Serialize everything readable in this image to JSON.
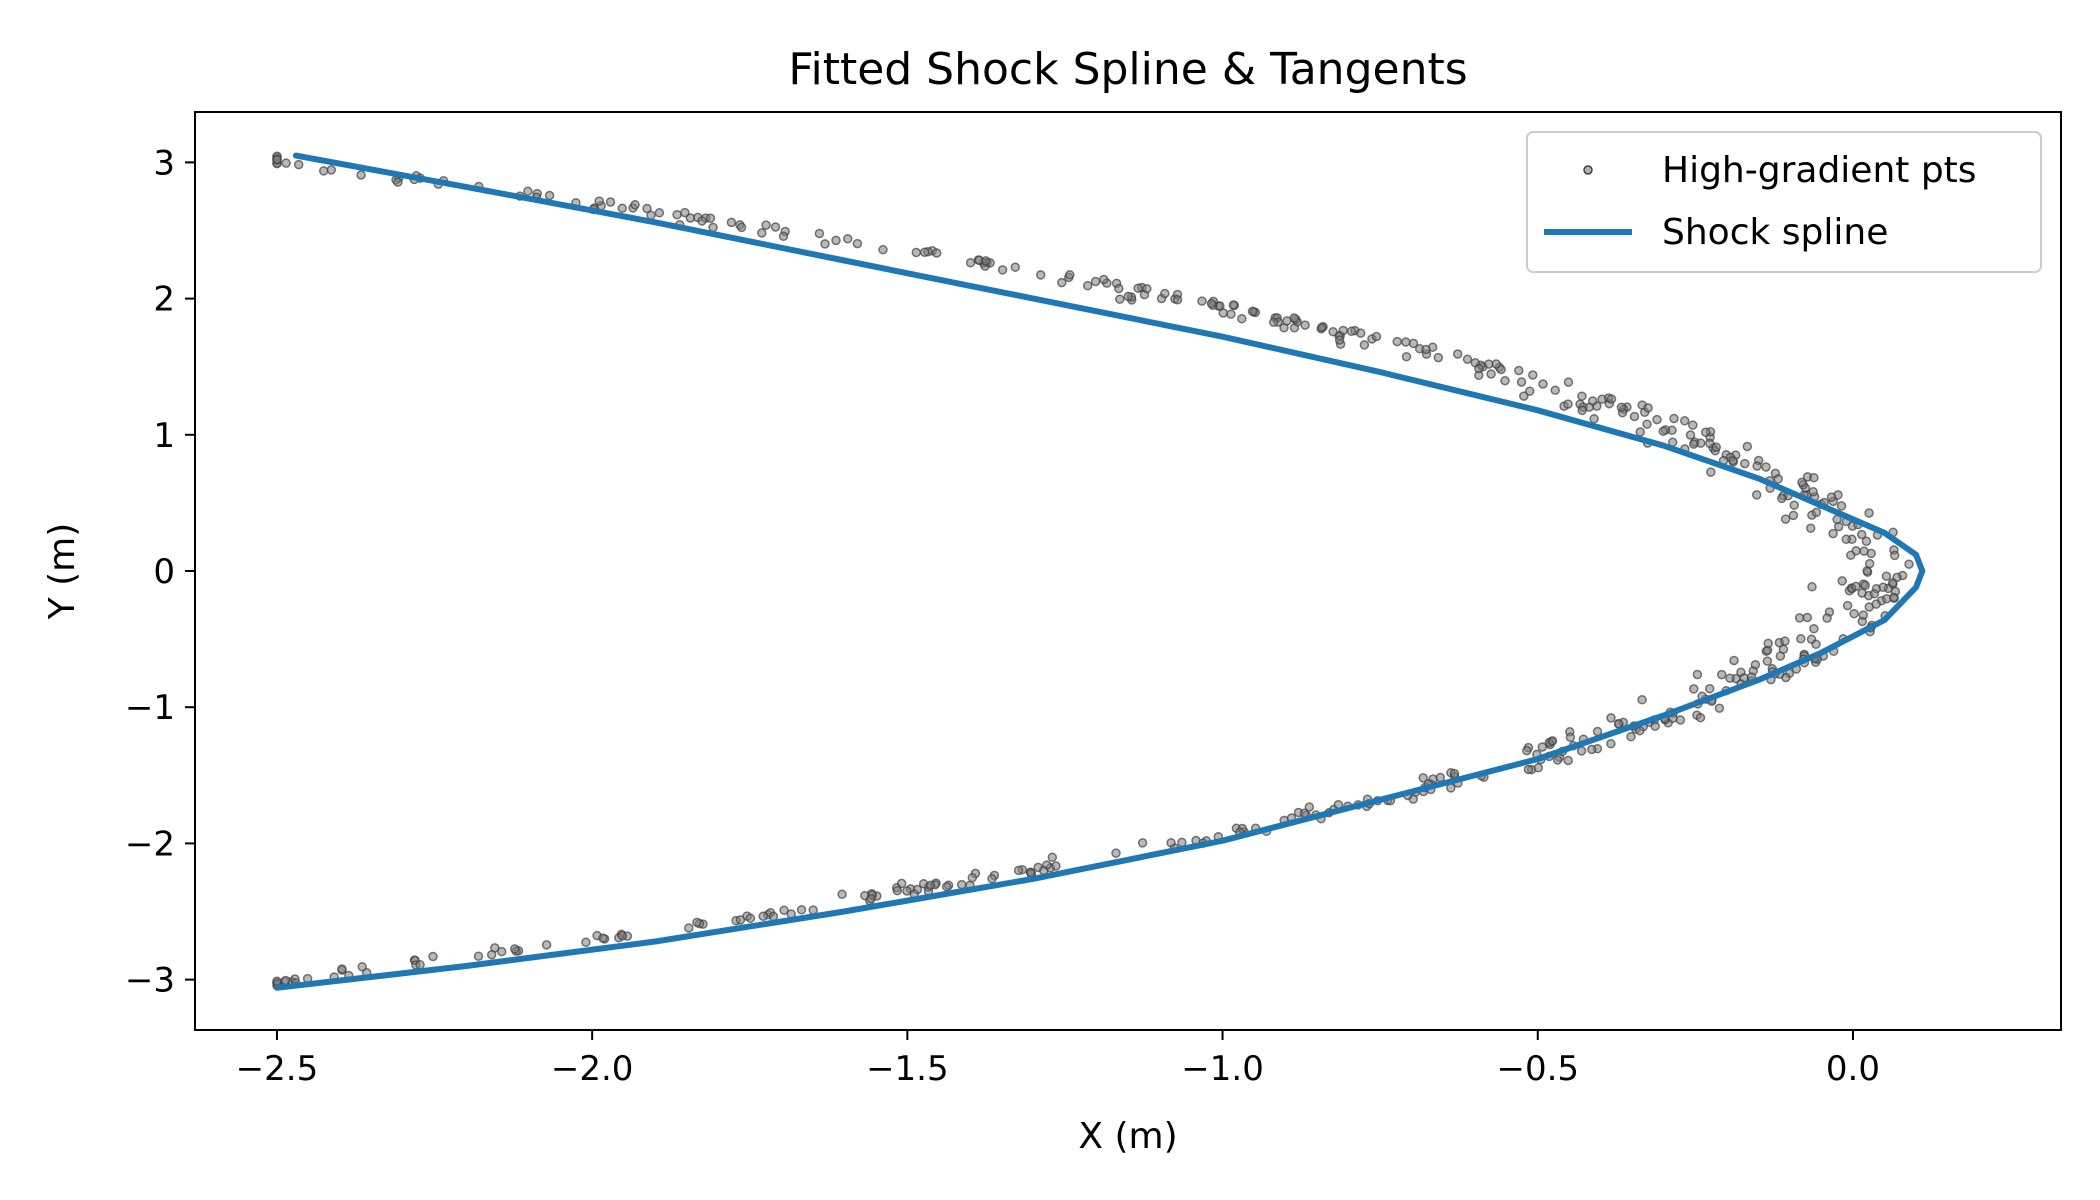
{
  "chart_data": {
    "type": "scatter",
    "title": "Fitted Shock Spline & Tangents",
    "xlabel": "X (m)",
    "ylabel": "Y (m)",
    "xlim": [
      -2.63,
      0.33
    ],
    "ylim": [
      -3.37,
      3.37
    ],
    "xticks": [
      -2.5,
      -2.0,
      -1.5,
      -1.0,
      -0.5,
      0.0
    ],
    "xtick_labels": [
      "−2.5",
      "−2.0",
      "−1.5",
      "−1.0",
      "−0.5",
      "0.0"
    ],
    "yticks": [
      3,
      2,
      1,
      0,
      -1,
      -2,
      -3
    ],
    "ytick_labels": [
      "3",
      "2",
      "1",
      "0",
      "−1",
      "−2",
      "−3"
    ],
    "grid": false,
    "legend_position": "top-right",
    "legend": [
      "High-gradient pts",
      "Shock spline"
    ],
    "colors": {
      "spline": "#1f77b4",
      "points": "#808080",
      "point_edge": "#404040"
    },
    "series": [
      {
        "name": "High-gradient pts",
        "kind": "scatter",
        "note_model": "x = 0.10 - 0.28*y^2 plus scatter band",
        "x": [],
        "y": []
      },
      {
        "name": "Shock spline",
        "kind": "line",
        "x": [
          -2.47,
          -2.2,
          -1.9,
          -1.6,
          -1.3,
          -1.0,
          -0.75,
          -0.5,
          -0.3,
          -0.15,
          -0.05,
          0.05,
          0.1,
          0.11,
          0.1,
          0.05,
          -0.05,
          -0.15,
          -0.3,
          -0.5,
          -0.75,
          -1.0,
          -1.3,
          -1.6,
          -1.9,
          -2.2,
          -2.5
        ],
        "y": [
          3.05,
          2.82,
          2.56,
          2.28,
          2.0,
          1.72,
          1.46,
          1.18,
          0.92,
          0.68,
          0.48,
          0.28,
          0.12,
          0.0,
          -0.12,
          -0.36,
          -0.6,
          -0.8,
          -1.06,
          -1.38,
          -1.68,
          -1.98,
          -2.26,
          -2.5,
          -2.72,
          -2.9,
          -3.06
        ]
      }
    ]
  }
}
